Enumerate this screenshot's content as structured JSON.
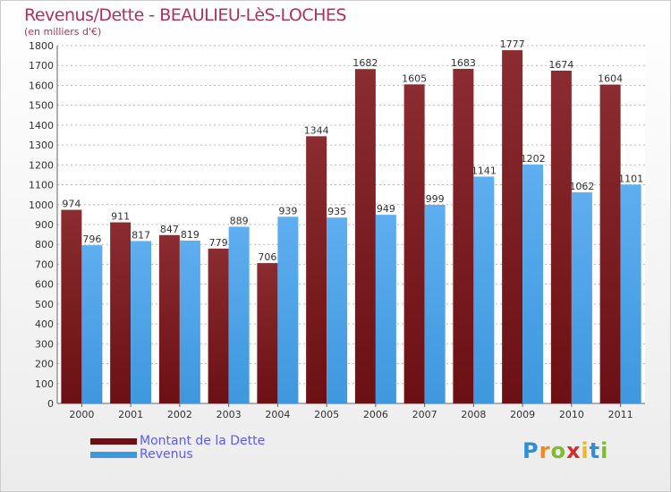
{
  "header": {
    "title": "Revenus/Dette - BEAULIEU-LèS-LOCHES",
    "subtitle": "(en milliers d'€)"
  },
  "colors": {
    "dette": "#6b1014",
    "revenus": "#3f97dd",
    "title": "#b03060",
    "legend_text": "#5a5aff"
  },
  "chart_data": {
    "type": "bar",
    "title": "Revenus/Dette - BEAULIEU-LèS-LOCHES",
    "subtitle": "(en milliers d'€)",
    "categories": [
      "2000",
      "2001",
      "2002",
      "2003",
      "2004",
      "2005",
      "2006",
      "2007",
      "2008",
      "2009",
      "2010",
      "2011"
    ],
    "series": [
      {
        "name": "Montant de la Dette",
        "values": [
          974,
          911,
          847,
          779,
          706,
          1344,
          1682,
          1605,
          1683,
          1777,
          1674,
          1604
        ]
      },
      {
        "name": "Revenus",
        "values": [
          796,
          817,
          819,
          889,
          939,
          935,
          949,
          999,
          1141,
          1202,
          1062,
          1101
        ]
      }
    ],
    "ylim": [
      0,
      1800
    ],
    "yticks": [
      "0",
      "100",
      "200",
      "300",
      "400",
      "500",
      "600",
      "700",
      "800",
      "900",
      "1000",
      "1100",
      "1200",
      "1300",
      "1400",
      "1500",
      "1600",
      "1700",
      "1800"
    ],
    "grid": true,
    "legend": "bottom-left"
  },
  "legend": {
    "items": [
      {
        "label": "Montant de la Dette"
      },
      {
        "label": "Revenus"
      }
    ]
  },
  "logo": {
    "letters": [
      "P",
      "r",
      "o",
      "x",
      "i",
      "t",
      "i"
    ],
    "colors": [
      "#2e8fd9",
      "#f08a1e",
      "#7dbd2a",
      "#d22c2c",
      "#f0b81e",
      "#2e8fd9",
      "#7dbd2a"
    ]
  }
}
